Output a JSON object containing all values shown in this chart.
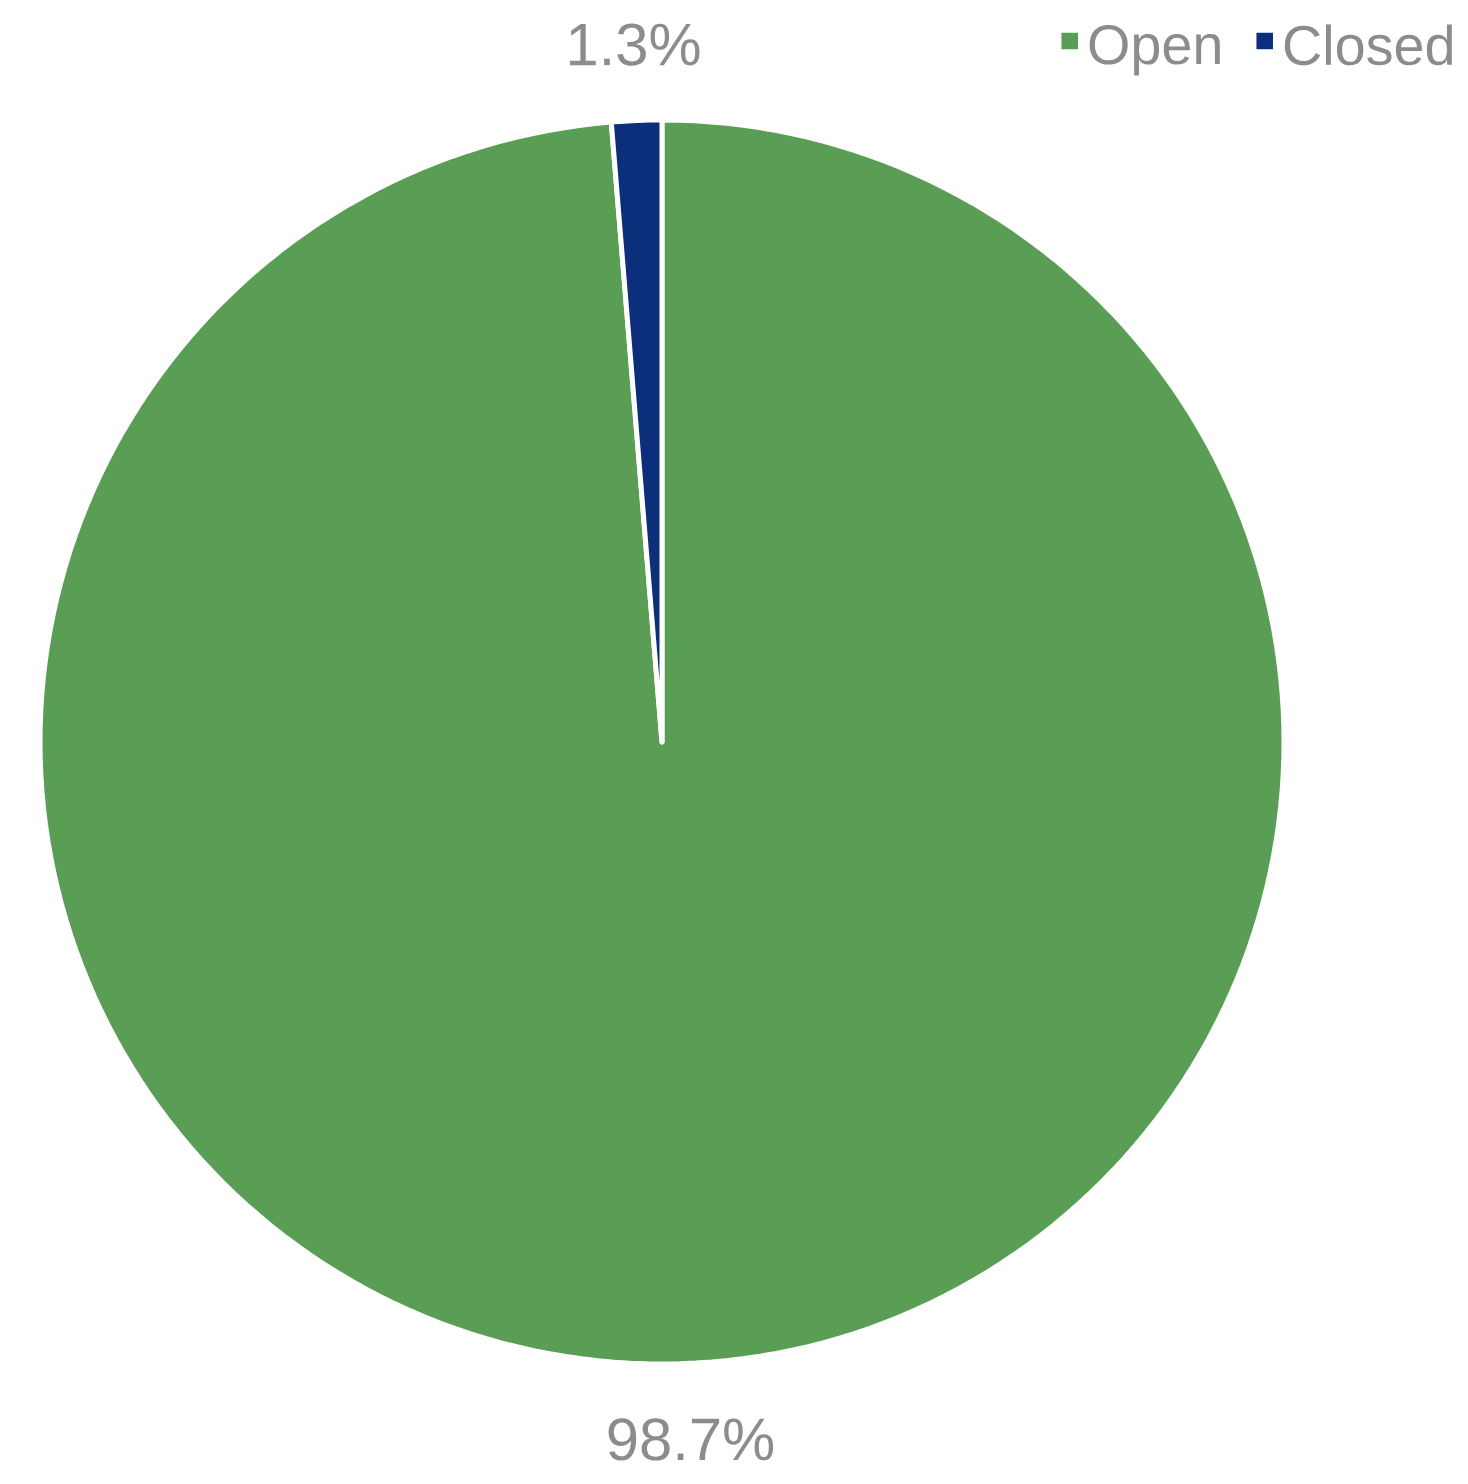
{
  "chart_data": {
    "type": "pie",
    "categories": [
      "Open",
      "Closed"
    ],
    "values": [
      98.7,
      1.3
    ],
    "colors": [
      "#5a9e55",
      "#0c2f7c"
    ],
    "value_labels": [
      "98.7%",
      "1.3%"
    ],
    "legend": "top right"
  }
}
